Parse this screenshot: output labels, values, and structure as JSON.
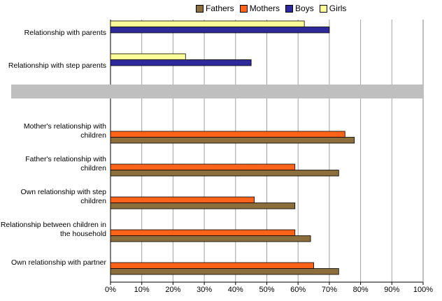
{
  "chart_data": {
    "type": "hbar",
    "categories": [
      "Relationship with parents",
      "Relationship with step parents",
      null,
      "Mother's relationship with children",
      "Father's relationship with children",
      "Own relationship with step children",
      "Relationship between children in the household",
      "Own relationship with partner"
    ],
    "series": [
      {
        "name": "Fathers",
        "color": "#8c6d3c",
        "values": [
          null,
          null,
          null,
          78,
          73,
          59,
          64,
          73
        ]
      },
      {
        "name": "Mothers",
        "color": "#ff6319",
        "values": [
          null,
          null,
          null,
          75,
          59,
          46,
          59,
          65
        ]
      },
      {
        "name": "Boys",
        "color": "#2f2a9c",
        "values": [
          70,
          45,
          null,
          null,
          null,
          null,
          null,
          null
        ]
      },
      {
        "name": "Girls",
        "color": "#ffff99",
        "values": [
          62,
          24,
          null,
          null,
          null,
          null,
          null,
          null
        ]
      }
    ],
    "xlim": [
      0,
      100
    ],
    "xticks": [
      {
        "value": 0,
        "label": "0%"
      },
      {
        "value": 10,
        "label": "10%"
      },
      {
        "value": 20,
        "label": "20%"
      },
      {
        "value": 30,
        "label": "30%"
      },
      {
        "value": 40,
        "label": "40%"
      },
      {
        "value": 50,
        "label": "50%"
      },
      {
        "value": 60,
        "label": "60%"
      },
      {
        "value": 70,
        "label": "70%"
      },
      {
        "value": 80,
        "label": "80%"
      },
      {
        "value": 90,
        "label": "90%"
      },
      {
        "value": 100,
        "label": "100%"
      }
    ],
    "grid": true,
    "legend": "top"
  }
}
